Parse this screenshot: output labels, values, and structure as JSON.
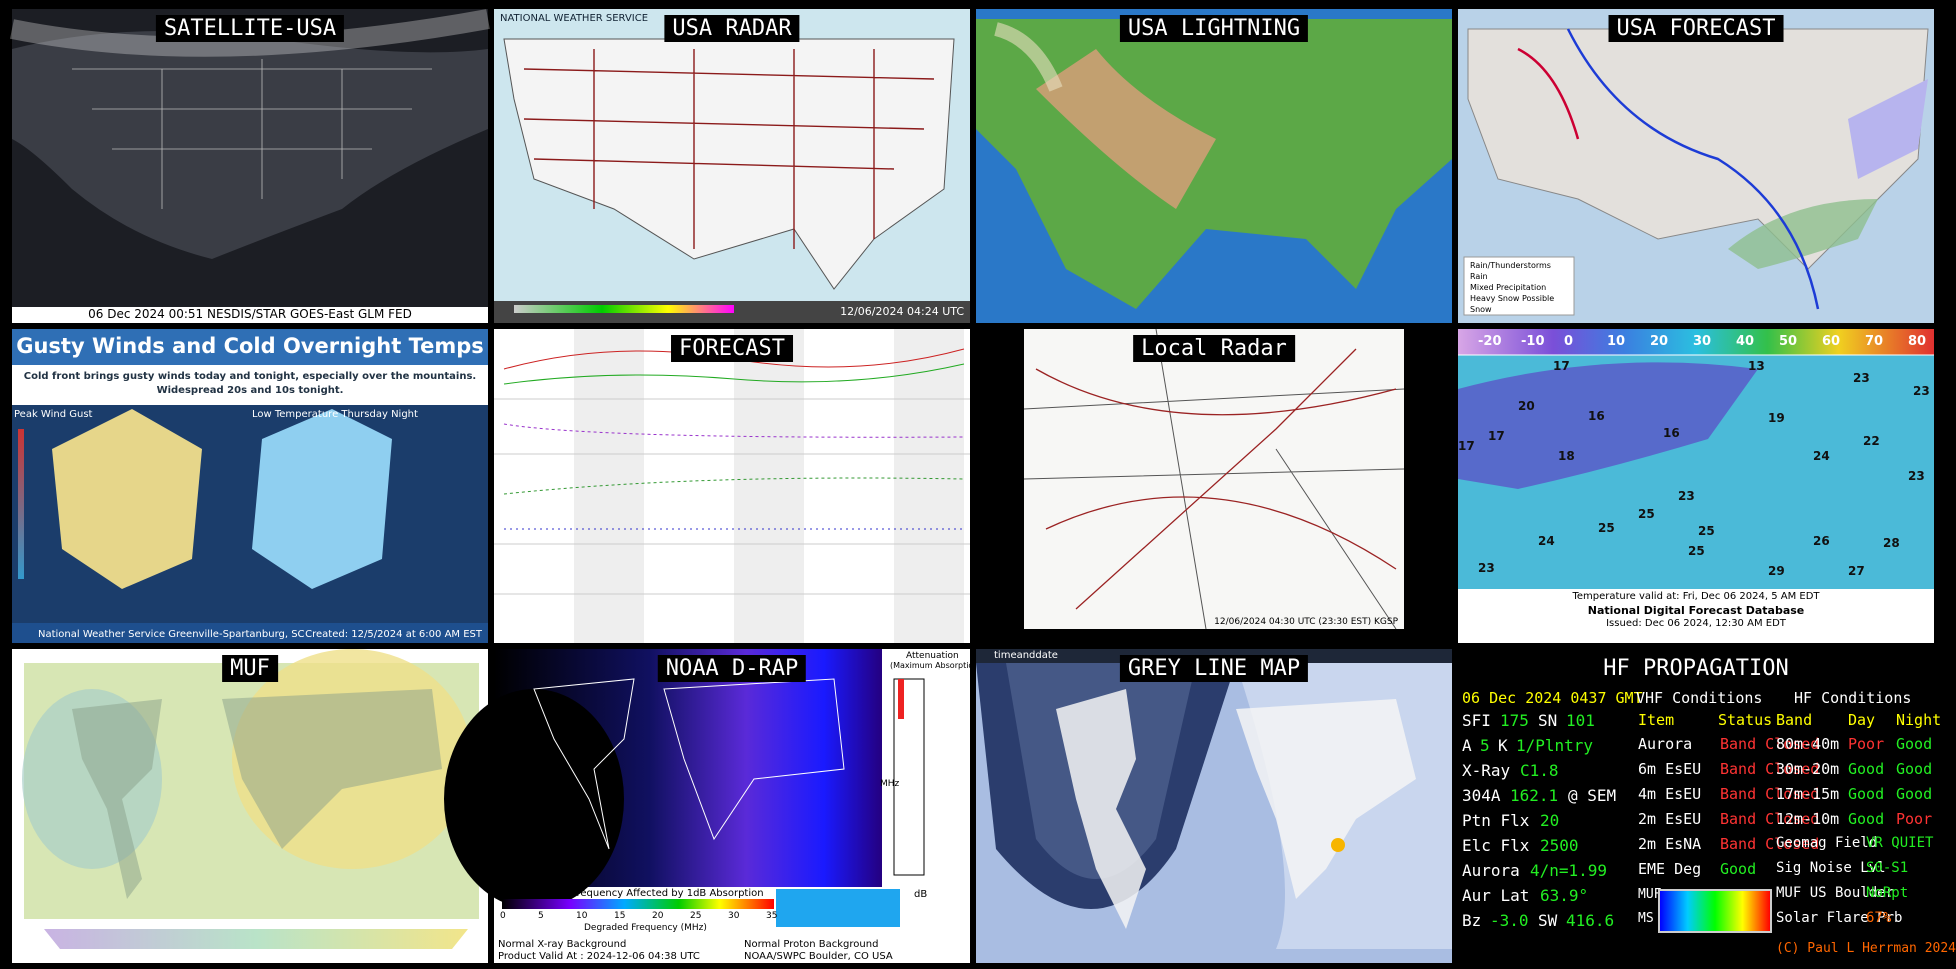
{
  "satellite": {
    "title": "SATELLITE-USA",
    "caption": "06 Dec 2024 00:51 NESDIS/STAR GOES-East GLM FED"
  },
  "radar": {
    "title": "USA RADAR",
    "header": "NATIONAL WEATHER SERVICE",
    "caption": "12/06/2024 04:24 UTC"
  },
  "lightning": {
    "title": "USA LIGHTNING"
  },
  "forecast_map": {
    "title": "USA FORECAST",
    "legend": [
      "Rain/Thunderstorms",
      "Rain",
      "Mixed Precipitation",
      "Heavy Snow Possible",
      "Snow"
    ]
  },
  "briefing": {
    "title": "Gusty Winds and Cold Overnight Temps",
    "subtitle": "Cold front brings gusty winds today and tonight, especially over the mountains.",
    "subtitle2": "Widespread 20s and 10s tonight.",
    "left": "Peak Wind Gust",
    "right": "Low Temperature Thursday Night",
    "footer": "National Weather Service Greenville-Spartanburg, SC",
    "created": "Created: 12/5/2024 at 6:00 AM EST"
  },
  "forecast": {
    "title": "FORECAST"
  },
  "local_radar": {
    "title": "Local Radar",
    "caption": "12/06/2024 04:30 UTC (23:30 EST) KGSP"
  },
  "temps": {
    "scale": [
      -20,
      -10,
      0,
      10,
      20,
      30,
      40,
      50,
      60,
      70,
      80
    ],
    "values": [
      17,
      13,
      23,
      23,
      20,
      16,
      19,
      17,
      16,
      18,
      22,
      24,
      23,
      17,
      23,
      25,
      25,
      24,
      25,
      26,
      28,
      23,
      25,
      29,
      27
    ],
    "valid": "Temperature valid at: Fri, Dec 06 2024, 5 AM EDT",
    "source": "National Digital Forecast Database",
    "issued": "Issued: Dec 06 2024, 12:30 AM EDT"
  },
  "muf": {
    "title": "MUF"
  },
  "drap": {
    "title": "NOAA D-RAP",
    "scale_title": "Highest Frequency Affected by 1dB Absorption",
    "scale_ticks": [
      0,
      5,
      10,
      15,
      20,
      25,
      30,
      35
    ],
    "axis": "Degraded Frequency (MHz)",
    "xray": "Normal X-ray Background",
    "valid": "Product Valid At : 2024-12-06 04:38 UTC",
    "proton": "Normal Proton Background",
    "agency": "NOAA/SWPC Boulder, CO USA",
    "atten": "Attenuation",
    "atten2": "(Maximum Absorption)",
    "db": "dB",
    "mhz": "MHz"
  },
  "greyline": {
    "title": "GREY LINE MAP",
    "brand": "timeanddate"
  },
  "hf": {
    "title": "HF PROPAGATION",
    "date": "06 Dec 2024 0437 GMT",
    "solar": [
      [
        "SFI",
        "175",
        "SN",
        "101"
      ],
      [
        "A",
        "5",
        "K",
        "1/Plntry"
      ],
      [
        "X-Ray",
        "C1.8"
      ],
      [
        "304A",
        "162.1",
        "@ SEM"
      ],
      [
        "Ptn Flx",
        "20"
      ],
      [
        "Elc Flx",
        "2500"
      ],
      [
        "Aurora",
        "4/n=1.99"
      ],
      [
        "Aur Lat",
        "63.9°"
      ],
      [
        "Bz",
        "-3.0",
        "SW",
        "416.6"
      ]
    ],
    "vhf_title": "VHF Conditions",
    "vhf_cols": [
      "Item",
      "Status"
    ],
    "vhf": [
      [
        "Aurora",
        "Band Closed"
      ],
      [
        "6m EsEU",
        "Band Closed"
      ],
      [
        "4m EsEU",
        "Band Closed"
      ],
      [
        "2m EsEU",
        "Band Closed"
      ],
      [
        "2m EsNA",
        "Band Closed"
      ],
      [
        "EME Deg",
        "Good"
      ]
    ],
    "hf_title": "HF Conditions",
    "hf_cols": [
      "Band",
      "Day",
      "Night"
    ],
    "bands": [
      [
        "80m-40m",
        "Poor",
        "Good"
      ],
      [
        "30m-20m",
        "Good",
        "Good"
      ],
      [
        "17m-15m",
        "Good",
        "Good"
      ],
      [
        "12m-10m",
        "Good",
        "Poor"
      ]
    ],
    "extra": [
      [
        "Geomag Field",
        "VR QUIET"
      ],
      [
        "Sig Noise Lvl",
        "S0-S1"
      ],
      [
        "MUF US Boulder",
        "NoRpt"
      ],
      [
        "Solar Flare Prb",
        "67%"
      ]
    ],
    "muf": "MUF",
    "ms": "MS",
    "credit": "(C) Paul L Herrman 2024"
  }
}
